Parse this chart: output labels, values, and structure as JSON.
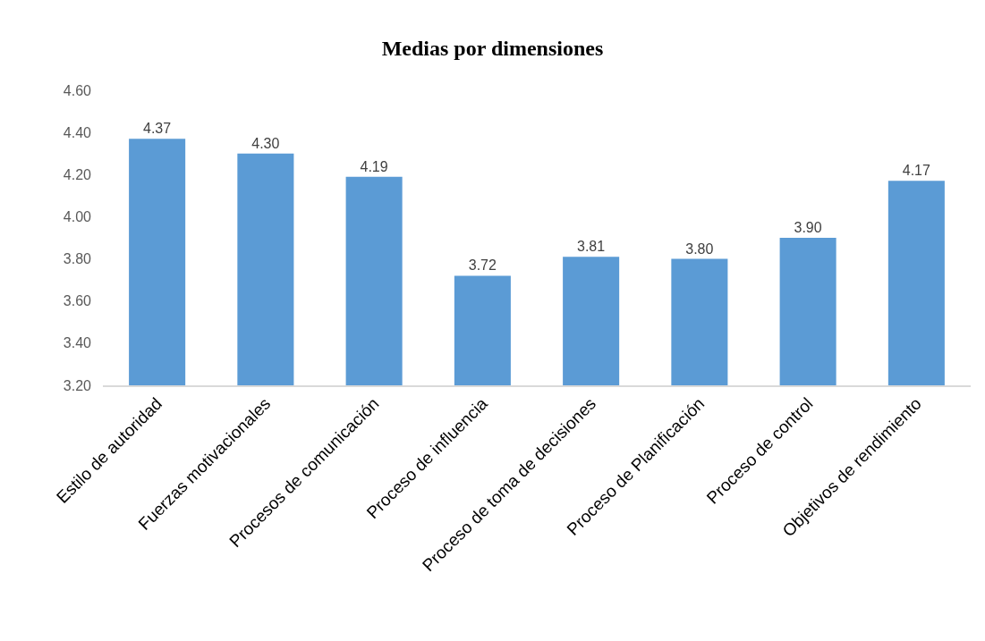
{
  "chart_data": {
    "type": "bar",
    "title": "Medias por dimensiones",
    "categories": [
      "Estilo de autoridad",
      "Fuerzas motivacionales",
      "Procesos de comunicación",
      "Proceso de influencia",
      "Proceso de toma de decisiones",
      "Proceso de Planificación",
      "Proceso de control",
      "Objetivos de rendimiento"
    ],
    "values": [
      4.37,
      4.3,
      4.19,
      3.72,
      3.81,
      3.8,
      3.9,
      4.17
    ],
    "value_labels": [
      "4.37",
      "4.30",
      "4.19",
      "3.72",
      "3.81",
      "3.80",
      "3.90",
      "4.17"
    ],
    "color": "#5b9bd5",
    "ylim": [
      3.2,
      4.6
    ],
    "yticks": [
      {
        "value": 3.2,
        "label": "3.20"
      },
      {
        "value": 3.4,
        "label": "3.40"
      },
      {
        "value": 3.6,
        "label": "3.60"
      },
      {
        "value": 3.8,
        "label": "3.80"
      },
      {
        "value": 4.0,
        "label": "4.00"
      },
      {
        "value": 4.2,
        "label": "4.20"
      },
      {
        "value": 4.4,
        "label": "4.40"
      },
      {
        "value": 4.6,
        "label": "4.60"
      }
    ]
  }
}
